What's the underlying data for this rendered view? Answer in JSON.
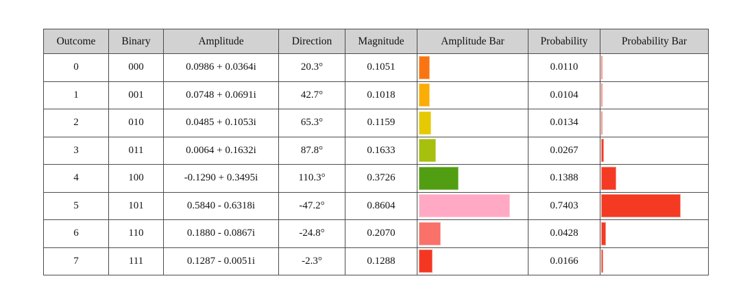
{
  "chart_data": {
    "type": "table",
    "columns": [
      "Outcome",
      "Binary",
      "Amplitude",
      "Direction",
      "Magnitude",
      "Amplitude Bar",
      "Probability",
      "Probability Bar"
    ],
    "rows": [
      {
        "outcome": "0",
        "binary": "000",
        "amplitude": "0.0986 + 0.0364i",
        "direction": "20.3°",
        "magnitude": "0.1051",
        "amplitude_bar_color": "#fa7511",
        "probability": "0.0110"
      },
      {
        "outcome": "1",
        "binary": "001",
        "amplitude": "0.0748 + 0.0691i",
        "direction": "42.7°",
        "magnitude": "0.1018",
        "amplitude_bar_color": "#fcad03",
        "probability": "0.0104"
      },
      {
        "outcome": "2",
        "binary": "010",
        "amplitude": "0.0485 + 0.1053i",
        "direction": "65.3°",
        "magnitude": "0.1159",
        "amplitude_bar_color": "#e5c902",
        "probability": "0.0134"
      },
      {
        "outcome": "3",
        "binary": "011",
        "amplitude": "0.0064 + 0.1632i",
        "direction": "87.8°",
        "magnitude": "0.1633",
        "amplitude_bar_color": "#a6c00d",
        "probability": "0.0267"
      },
      {
        "outcome": "4",
        "binary": "100",
        "amplitude": "-0.1290 + 0.3495i",
        "direction": "110.3°",
        "magnitude": "0.3726",
        "amplitude_bar_color": "#529e12",
        "probability": "0.1388"
      },
      {
        "outcome": "5",
        "binary": "101",
        "amplitude": "0.5840 - 0.6318i",
        "direction": "-47.2°",
        "magnitude": "0.8604",
        "amplitude_bar_color": "#ffa9c5",
        "probability": "0.7403"
      },
      {
        "outcome": "6",
        "binary": "110",
        "amplitude": "0.1880 - 0.0867i",
        "direction": "-24.8°",
        "magnitude": "0.2070",
        "amplitude_bar_color": "#f97168",
        "probability": "0.0428"
      },
      {
        "outcome": "7",
        "binary": "111",
        "amplitude": "0.1287 - 0.0051i",
        "direction": "-2.3°",
        "magnitude": "0.1288",
        "amplitude_bar_color": "#f43723",
        "probability": "0.0166"
      }
    ],
    "colors": {
      "header_bg": "#d2d2d2",
      "grid": "#4a4a4a",
      "probability_bar": "#f43a22"
    },
    "layout_hints": {
      "amplitude_bar_full_scale": 1.0,
      "probability_bar_full_scale": 1.0
    }
  }
}
